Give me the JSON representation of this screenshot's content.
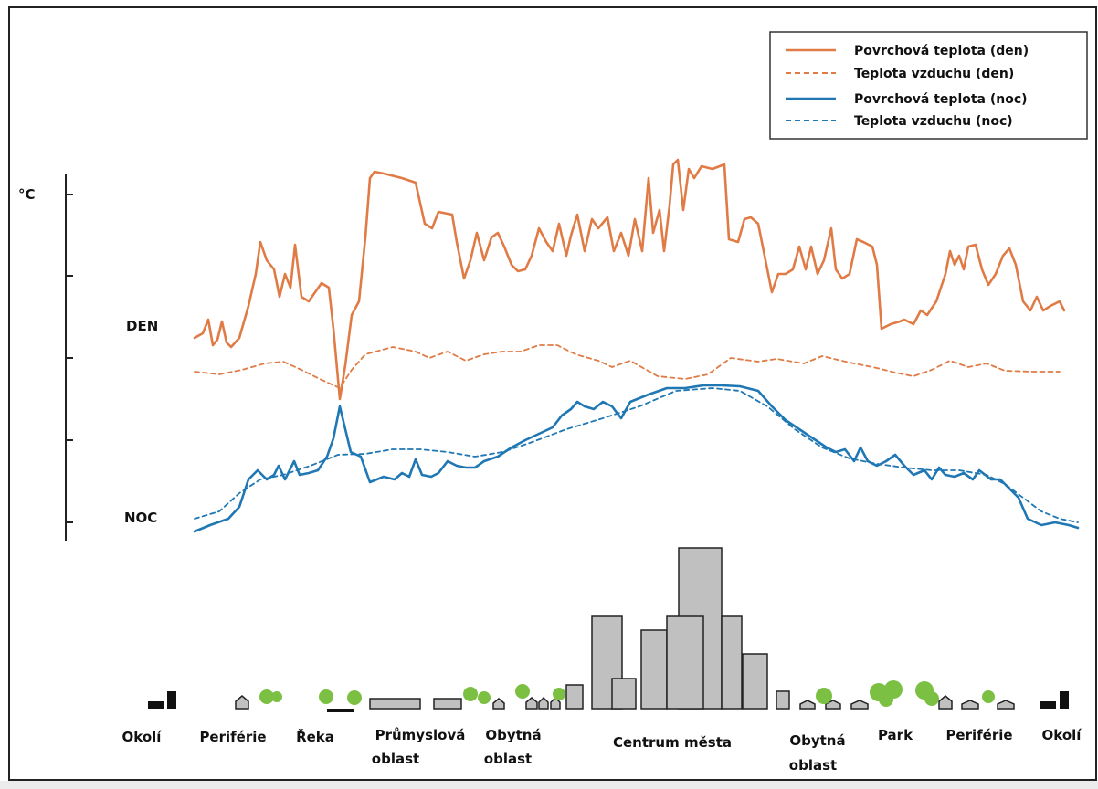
{
  "legend": [
    "Povrchová teplota (den)",
    "Teplota vzduchu (den)",
    "Povrchová teplota (noc)",
    "Teplota vzduchu (noc)"
  ],
  "axis": {
    "unit": "°C"
  },
  "labels": {
    "day": "DEN",
    "night": "NOC"
  },
  "zones": [
    [
      "Okolí"
    ],
    [
      "Periférie"
    ],
    [
      "Řeka"
    ],
    [
      "Průmyslová",
      "oblast"
    ],
    [
      "Obytná",
      "oblast"
    ],
    [
      "Centrum města"
    ],
    [
      "Obytná",
      "oblast"
    ],
    [
      "Park"
    ],
    [
      "Periférie"
    ],
    [
      "Okolí"
    ]
  ]
}
